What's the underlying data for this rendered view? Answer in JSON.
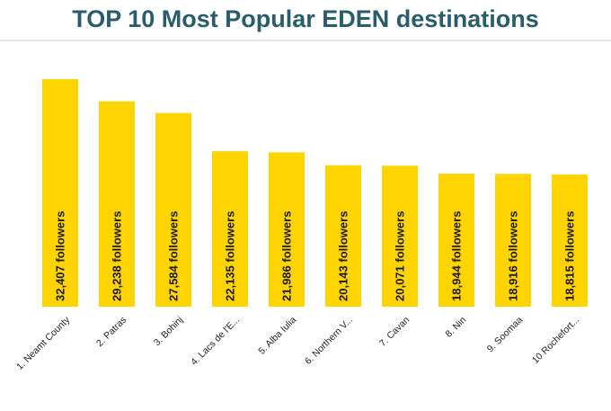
{
  "colors": {
    "title": "#2a5d6b",
    "bar": "#ffd400",
    "divider": "#e6e6e6"
  },
  "chart_data": {
    "type": "bar",
    "orientation": "vertical",
    "title": "TOP 10 Most Popular EDEN destinations",
    "xlabel": "",
    "ylabel": "",
    "ylim": [
      0,
      35000
    ],
    "grid": false,
    "categories": [
      "1. Neamt County",
      "2. Patras",
      "3. Bohinj",
      "4. Lacs de l'E...",
      "5. Alba Iulia",
      "6. Northern V...",
      "7. Cavan",
      "8. Nin",
      "9. Soomaa",
      "10 Rochefort..."
    ],
    "values": [
      32407,
      29238,
      27584,
      22135,
      21986,
      20143,
      20071,
      18944,
      18916,
      18815
    ],
    "data_labels": [
      "32,407 followers",
      "29,238 followers",
      "27,584 followers",
      "22,135 followers",
      "21,986 followers",
      "20,143 followers",
      "20,071 followers",
      "18,944 followers",
      "18,916 followers",
      "18,815 followers"
    ]
  }
}
